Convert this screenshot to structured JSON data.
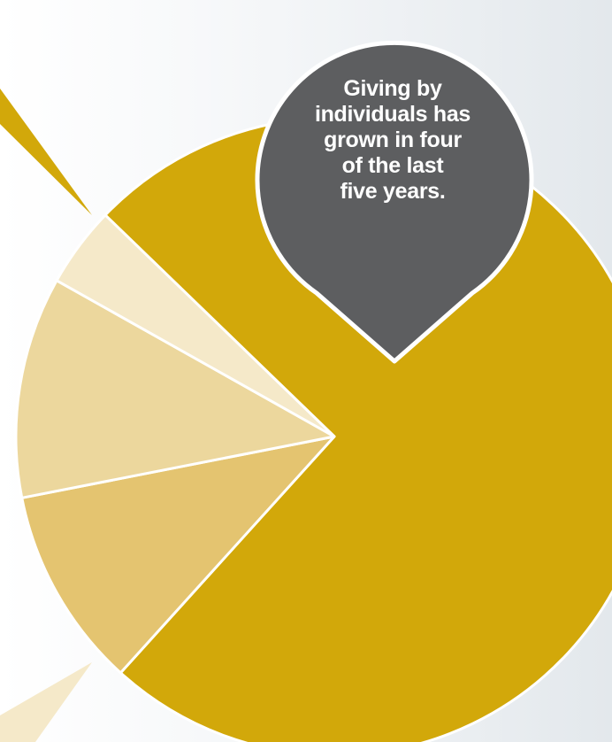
{
  "chart_data": {
    "type": "pie",
    "title": "",
    "slices": [
      {
        "value": 73,
        "color": "#d2a80a"
      },
      {
        "value": 10,
        "color": "#e4c470"
      },
      {
        "value": 11,
        "color": "#ecd79d"
      },
      {
        "value": 4,
        "color": "#f5e9c9"
      }
    ],
    "annotation": {
      "lines": [
        "Giving by",
        "individuals has",
        "grown in four",
        "of the last",
        "five years."
      ],
      "color": "#5d5e60"
    }
  }
}
